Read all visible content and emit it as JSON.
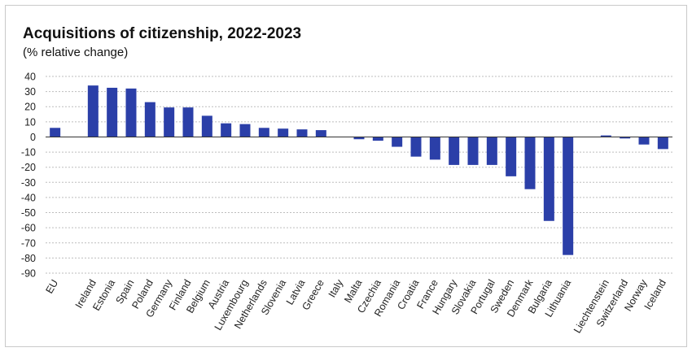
{
  "chart_data": {
    "type": "bar",
    "title": "Acquisitions of citizenship, 2022-2023",
    "subtitle": "(% relative change)",
    "xlabel": "",
    "ylabel": "",
    "ylim": [
      -90,
      40
    ],
    "yticks": [
      40,
      30,
      20,
      10,
      0,
      -10,
      -20,
      -30,
      -40,
      -50,
      -60,
      -70,
      -80,
      -90
    ],
    "grid": true,
    "legend": "none",
    "bar_color": "#2b3fa8",
    "categories": [
      "EU",
      "",
      "Ireland",
      "Estonia",
      "Spain",
      "Poland",
      "Germany",
      "Finland",
      "Belgium",
      "Austria",
      "Luxembourg",
      "Netherlands",
      "Slovenia",
      "Latvia",
      "Greece",
      "Italy",
      "Malta",
      "Czechia",
      "Romania",
      "Croatia",
      "France",
      "Hungary",
      "Slovakia",
      "Portugal",
      "Sweden",
      "Denmark",
      "Bulgaria",
      "Lithuania",
      "",
      "Liechtenstein",
      "Switzerland",
      "Norway",
      "Iceland"
    ],
    "values": [
      6,
      null,
      34,
      32.5,
      32,
      23,
      19.5,
      19.5,
      14,
      9,
      8.5,
      6,
      5.5,
      5,
      4.5,
      0,
      -1.5,
      -2.5,
      -6.5,
      -13,
      -15,
      -18.5,
      -18.5,
      -18.5,
      -26,
      -34.5,
      -55.5,
      -78,
      null,
      1,
      -1,
      -5,
      -8
    ]
  }
}
